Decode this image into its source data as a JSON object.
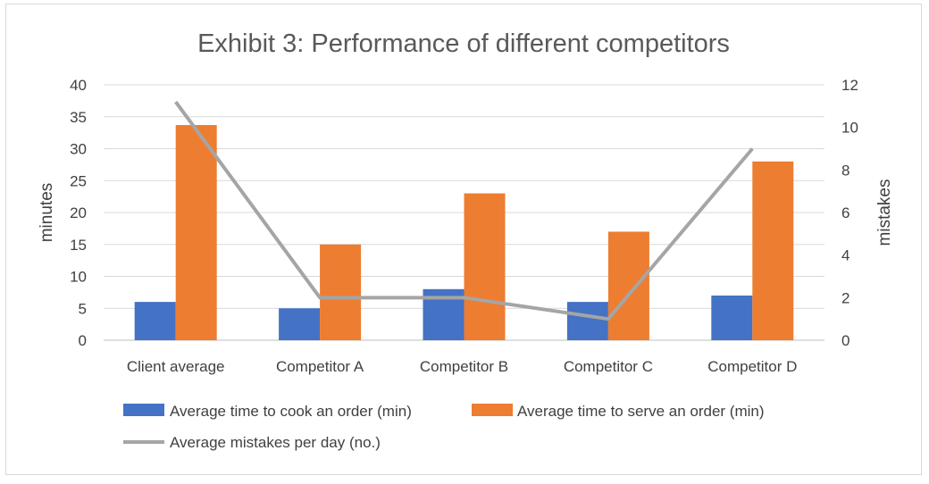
{
  "chart_data": {
    "type": "bar",
    "title": "Exhibit 3: Performance of different competitors",
    "xlabel": "",
    "ylabel": "minutes",
    "y2label": "mistakes",
    "categories": [
      "Client average",
      "Competitor A",
      "Competitor B",
      "Competitor C",
      "Competitor D"
    ],
    "ylim": [
      0,
      40
    ],
    "yticks": [
      0,
      5,
      10,
      15,
      20,
      25,
      30,
      35,
      40
    ],
    "y2lim": [
      0,
      12
    ],
    "y2ticks": [
      0,
      2,
      4,
      6,
      8,
      10,
      12
    ],
    "grid": true,
    "legend_position": "bottom",
    "series": [
      {
        "name": "Average time to cook an order (min)",
        "type": "bar",
        "axis": "left",
        "color": "#4472C4",
        "values": [
          6,
          5,
          8,
          6,
          7
        ]
      },
      {
        "name": "Average time to serve an order (min)",
        "type": "bar",
        "axis": "left",
        "color": "#ED7D31",
        "values": [
          33.7,
          15,
          23,
          17,
          28
        ]
      },
      {
        "name": "Average mistakes per day (no.)",
        "type": "line",
        "axis": "right",
        "color": "#A5A5A5",
        "values": [
          11.2,
          2,
          2,
          1,
          9
        ]
      }
    ]
  }
}
